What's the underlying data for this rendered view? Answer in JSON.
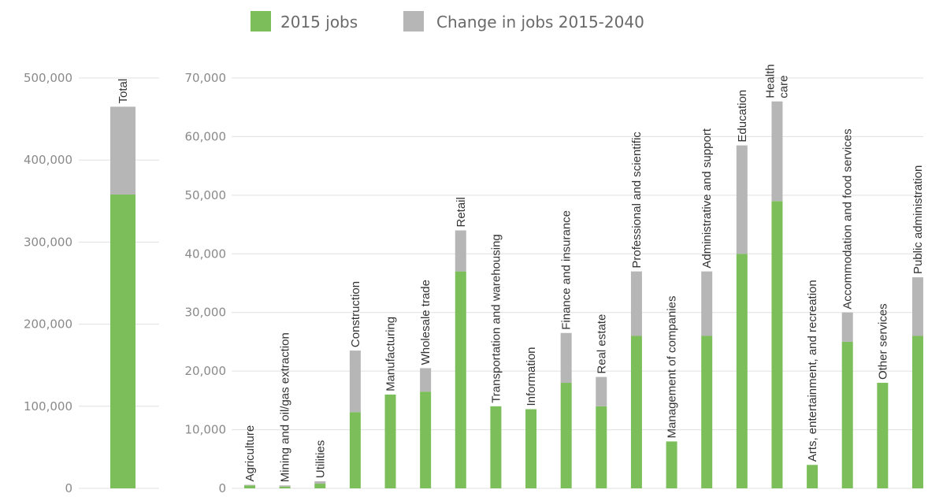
{
  "chart_data": [
    {
      "type": "bar",
      "stacked": true,
      "categories": [
        "Total"
      ],
      "series": [
        {
          "name": "2015 jobs",
          "values": [
            358000
          ]
        },
        {
          "name": "Change in jobs 2015-2040",
          "values": [
            107000
          ]
        }
      ],
      "yticks": [
        "0",
        "100,000",
        "200,000",
        "300,000",
        "400,000",
        "500,000"
      ],
      "ylim": [
        0,
        500000
      ],
      "grid": true
    },
    {
      "type": "bar",
      "stacked": true,
      "categories": [
        "Agriculture",
        "Mining and oil/gas extraction",
        "Utilities",
        "Construction",
        "Manufacturing",
        "Wholesale trade",
        "Retail",
        "Transportation and warehousing",
        "Information",
        "Finance and insurance",
        "Real estate",
        "Professional and  scientific",
        "Management of companies",
        "Administrative and support",
        "Education",
        "Health care",
        "Arts, entertainment, and recreation",
        "Accommodation and food services",
        "Other services",
        "Public administration"
      ],
      "series": [
        {
          "name": "2015 jobs",
          "values": [
            500,
            300,
            800,
            13000,
            16000,
            16500,
            37000,
            14000,
            13500,
            18000,
            14000,
            26000,
            8000,
            26000,
            40000,
            49000,
            4000,
            25000,
            18000,
            26000
          ]
        },
        {
          "name": "Change in jobs 2015-2040",
          "values": [
            100,
            200,
            400,
            10500,
            0,
            4000,
            7000,
            0,
            0,
            8500,
            5000,
            11000,
            0,
            11000,
            18500,
            17000,
            0,
            5000,
            0,
            10000
          ]
        }
      ],
      "yticks": [
        "0",
        "10,000",
        "20,000",
        "30,000",
        "40,000",
        "50,000",
        "60,000",
        "70,000"
      ],
      "ylim": [
        0,
        70000
      ],
      "grid": true,
      "legend": "top-center"
    }
  ],
  "legend": [
    {
      "label": "2015 jobs",
      "color": "#7cbf5a"
    },
    {
      "label": "Change in jobs 2015-2040",
      "color": "#b6b6b6"
    }
  ],
  "colors": {
    "jobs2015": "#7cbf5a",
    "change": "#b6b6b6",
    "grid": "#e0e0e0"
  }
}
